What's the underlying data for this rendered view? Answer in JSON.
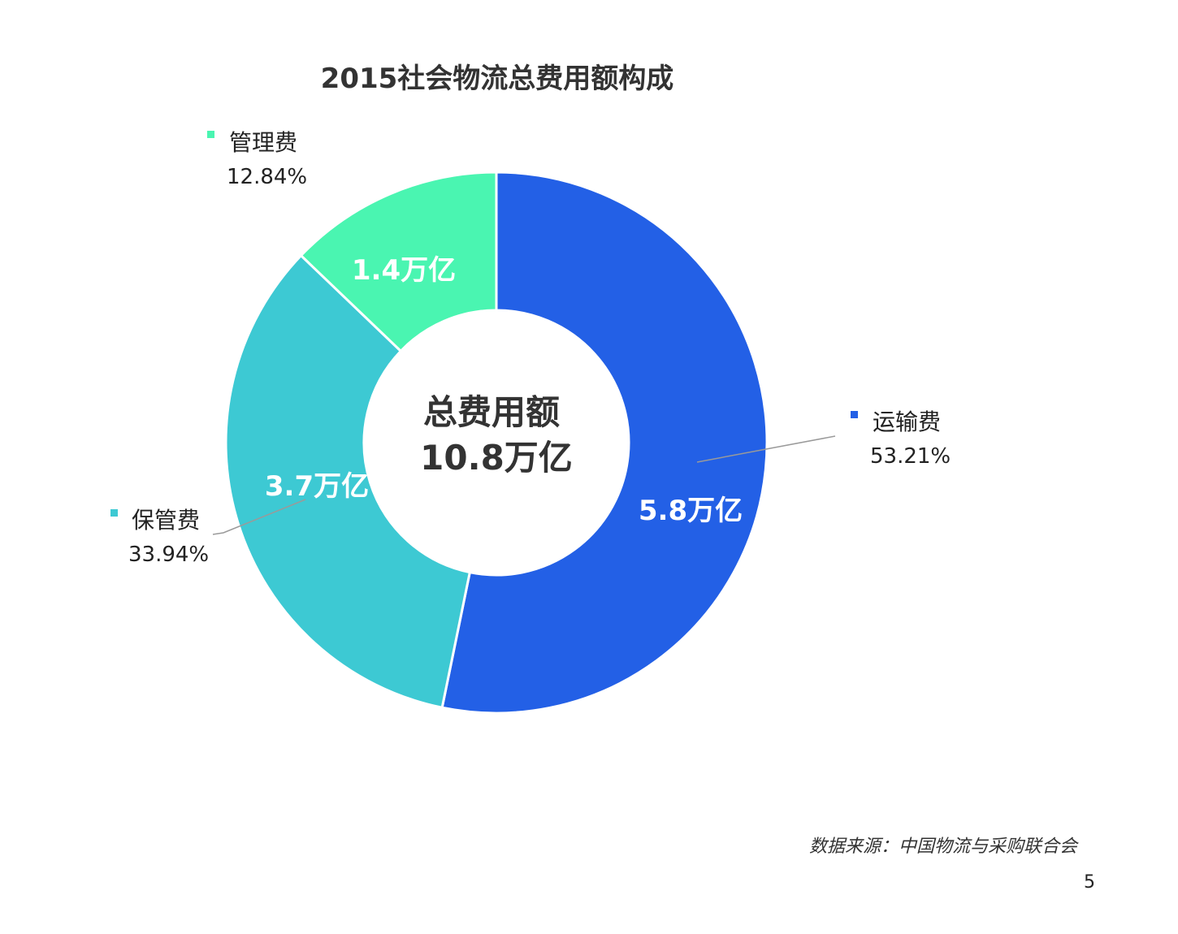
{
  "chart_data": {
    "type": "pie",
    "title": "2015社会物流总费用额构成",
    "center_label": {
      "line1": "总费用额",
      "line2": "10.8万亿"
    },
    "slices": [
      {
        "name": "运输费",
        "percent_label": "53.21%",
        "value_label": "5.8万亿",
        "percent": 53.21,
        "value": 5.8,
        "color": "#2360e6"
      },
      {
        "name": "保管费",
        "percent_label": "33.94%",
        "value_label": "3.7万亿",
        "percent": 33.94,
        "value": 3.7,
        "color": "#3dc9d3"
      },
      {
        "name": "管理费",
        "percent_label": "12.84%",
        "value_label": "1.4万亿",
        "percent": 12.84,
        "value": 1.4,
        "color": "#4af5b1"
      }
    ],
    "legend_placement": "beside-slices"
  },
  "source": "数据来源：中国物流与采购联合会",
  "page_number": "5"
}
